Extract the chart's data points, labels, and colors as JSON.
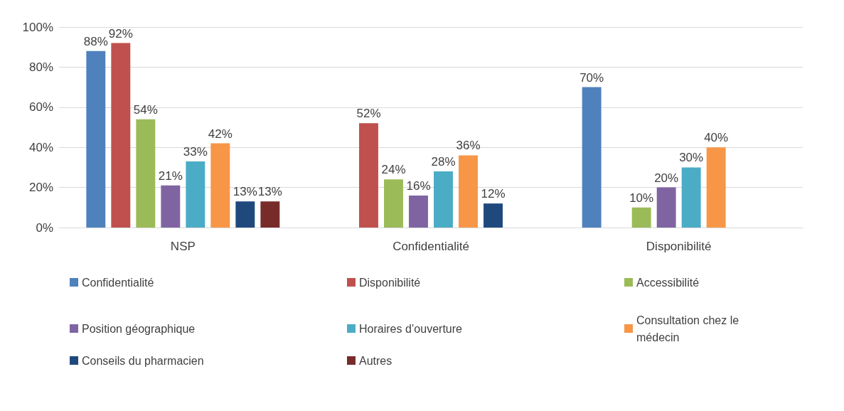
{
  "chart_data": {
    "type": "bar",
    "categories": [
      "NSP",
      "Confidentialité",
      "Disponibilité"
    ],
    "series": [
      {
        "name": "Confidentialité",
        "color": "#4f81bd",
        "values": [
          88,
          null,
          70
        ],
        "value_labels": [
          "88%",
          null,
          "70%"
        ]
      },
      {
        "name": "Disponibilité",
        "color": "#c0504d",
        "values": [
          92,
          52,
          null
        ],
        "value_labels": [
          "92%",
          "52%",
          null
        ]
      },
      {
        "name": "Accessibilité",
        "color": "#9bbb59",
        "values": [
          54,
          24,
          10
        ],
        "value_labels": [
          "54%",
          "24%",
          "10%"
        ]
      },
      {
        "name": "Position géographique",
        "color": "#8064a2",
        "values": [
          21,
          16,
          20
        ],
        "value_labels": [
          "21%",
          "16%",
          "20%"
        ]
      },
      {
        "name": "Horaires d’ouverture",
        "color": "#4bacc6",
        "values": [
          33,
          28,
          30
        ],
        "value_labels": [
          "33%",
          "28%",
          "30%"
        ]
      },
      {
        "name": "Consultation chez le médecin",
        "color": "#f79646",
        "values": [
          42,
          36,
          40
        ],
        "value_labels": [
          "42%",
          "36%",
          "40%"
        ]
      },
      {
        "name": "Conseils du pharmacien",
        "color": "#1f497d",
        "values": [
          13,
          12,
          null
        ],
        "value_labels": [
          "13%",
          "12%",
          null
        ]
      },
      {
        "name": "Autres",
        "color": "#772c2a",
        "values": [
          13,
          null,
          null
        ],
        "value_labels": [
          "13%",
          null,
          null
        ]
      }
    ],
    "ylim": [
      0,
      100
    ],
    "yticks": [
      {
        "value": 0,
        "label": "0%"
      },
      {
        "value": 20,
        "label": "20%"
      },
      {
        "value": 40,
        "label": "40%"
      },
      {
        "value": 60,
        "label": "60%"
      },
      {
        "value": 80,
        "label": "80%"
      },
      {
        "value": 100,
        "label": "100%"
      }
    ],
    "grid": "y",
    "legend": "bottom"
  }
}
